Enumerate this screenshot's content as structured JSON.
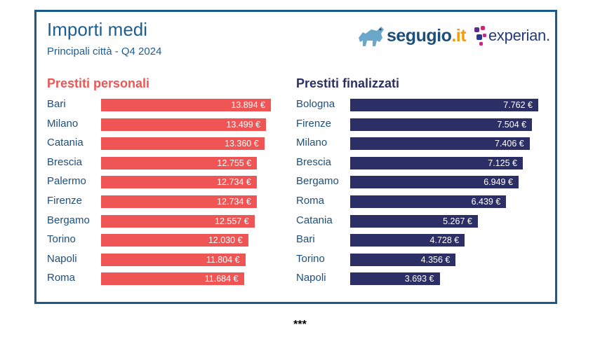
{
  "header": {
    "title": "Importi medi",
    "subtitle": "Principali città - Q4 2024"
  },
  "logos": {
    "segugio": {
      "name": "segugio",
      "tld": ".it",
      "icon": "dog-icon"
    },
    "experian": {
      "name": "experian.",
      "icon": "dots-icon"
    }
  },
  "colors": {
    "personali": "#f05555",
    "finalizzati": "#2c2f66",
    "frame": "#1b5a8c"
  },
  "chart_data": [
    {
      "type": "bar",
      "orientation": "horizontal",
      "title": "Prestiti personali",
      "categories": [
        "Bari",
        "Milano",
        "Catania",
        "Brescia",
        "Palermo",
        "Firenze",
        "Bergamo",
        "Torino",
        "Napoli",
        "Roma"
      ],
      "values": [
        13894,
        13499,
        13360,
        12755,
        12734,
        12734,
        12557,
        12030,
        11804,
        11684
      ],
      "labels": [
        "13.894 €",
        "13.499 €",
        "13.360 €",
        "12.755 €",
        "12.734 €",
        "12.734 €",
        "12.557 €",
        "12.030 €",
        "11.804 €",
        "11.684 €"
      ],
      "xlim": [
        0,
        13894
      ]
    },
    {
      "type": "bar",
      "orientation": "horizontal",
      "title": "Prestiti finalizzati",
      "categories": [
        "Bologna",
        "Firenze",
        "Milano",
        "Brescia",
        "Bergamo",
        "Roma",
        "Catania",
        "Bari",
        "Torino",
        "Napoli"
      ],
      "values": [
        7762,
        7504,
        7406,
        7125,
        6949,
        6439,
        5267,
        4728,
        4356,
        3693
      ],
      "labels": [
        "7.762 €",
        "7.504 €",
        "7.406 €",
        "7.125 €",
        "6.949 €",
        "6.439 €",
        "5.267 €",
        "4.728 €",
        "4.356 €",
        "3.693 €"
      ],
      "xlim": [
        0,
        7762
      ]
    }
  ],
  "footer": {
    "text": "***"
  }
}
